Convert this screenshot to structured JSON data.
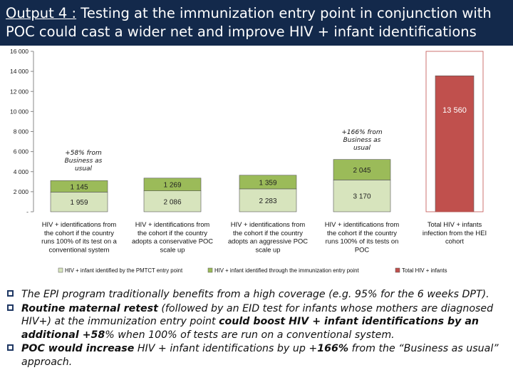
{
  "title": {
    "prefix": "Output 4 :",
    "line1": " Testing at the immunization entry point in conjunction with",
    "line2": "POC could cast a wider net and improve HIV + infant identifications"
  },
  "colors": {
    "title_bg": "#13294b",
    "pmtct": "#d7e4bd",
    "epi": "#9bbb59",
    "total": "#c0504d"
  },
  "chart_data": {
    "type": "bar",
    "stacked": true,
    "ylim": [
      0,
      16000
    ],
    "yticks": [
      "16 000",
      "14 000",
      "12 000",
      "10 000",
      "8 000",
      "6 000",
      "4 000",
      "2 000",
      "-"
    ],
    "ytick_values": [
      16000,
      14000,
      12000,
      10000,
      8000,
      6000,
      4000,
      2000,
      0
    ],
    "categories": [
      [
        "HIV + identifications from",
        "the cohort if the country",
        "runs 100% of its test on a",
        "conventional system"
      ],
      [
        "HIV + identifications from",
        "the cohort if the country",
        "adopts a conservative POC",
        "scale up"
      ],
      [
        "HIV + identifications from",
        "the cohort if the country",
        "adopts an aggressive POC",
        "scale up"
      ],
      [
        "HIV + identifications from",
        "the cohort if the country",
        "runs 100% of its tests on",
        "POC"
      ],
      [
        "Total HIV + infants",
        "infection from the HEI",
        "cohort"
      ]
    ],
    "series": [
      {
        "name": "HIV + infant identified by the PMTCT entry point",
        "values": [
          1959,
          2086,
          2283,
          3170,
          0
        ],
        "labels": [
          "1 959",
          "2 086",
          "2 283",
          "3 170",
          ""
        ]
      },
      {
        "name": "HIV + infant identified through the immunization entry point",
        "values": [
          1145,
          1269,
          1359,
          2045,
          0
        ],
        "labels": [
          "1 145",
          "1 269",
          "1 359",
          "2 045",
          ""
        ]
      },
      {
        "name": "Total HIV + infants",
        "values": [
          0,
          0,
          0,
          0,
          13560
        ],
        "labels": [
          "",
          "",
          "",
          "",
          "13 560"
        ]
      }
    ],
    "annotations": [
      {
        "text": [
          "+58% from",
          "Business as",
          "usual"
        ],
        "category": 0
      },
      {
        "text": [
          "+166% from",
          "Business as",
          "usual"
        ],
        "category": 3
      }
    ],
    "legend": "bottom"
  },
  "bullets": [
    [
      {
        "t": "The EPI program traditionally benefits from a high coverage (e.g. 95% for the 6 weeks DPT).",
        "b": false
      }
    ],
    [
      {
        "t": "Routine maternal retest",
        "b": true
      },
      {
        "t": " (followed by an EID test for infants whose mothers are diagnosed HIV+) at the immunization entry point ",
        "b": false
      },
      {
        "t": "could boost HIV + infant identifications by an additional +58",
        "b": true
      },
      {
        "t": "% when 100% of tests are run on a conventional system.",
        "b": false
      }
    ],
    [
      {
        "t": "POC would increase",
        "b": true
      },
      {
        "t": " HIV + infant identifications by up +",
        "b": false
      },
      {
        "t": "166%",
        "b": true
      },
      {
        "t": " from the “Business as usual” approach.",
        "b": false
      }
    ]
  ]
}
